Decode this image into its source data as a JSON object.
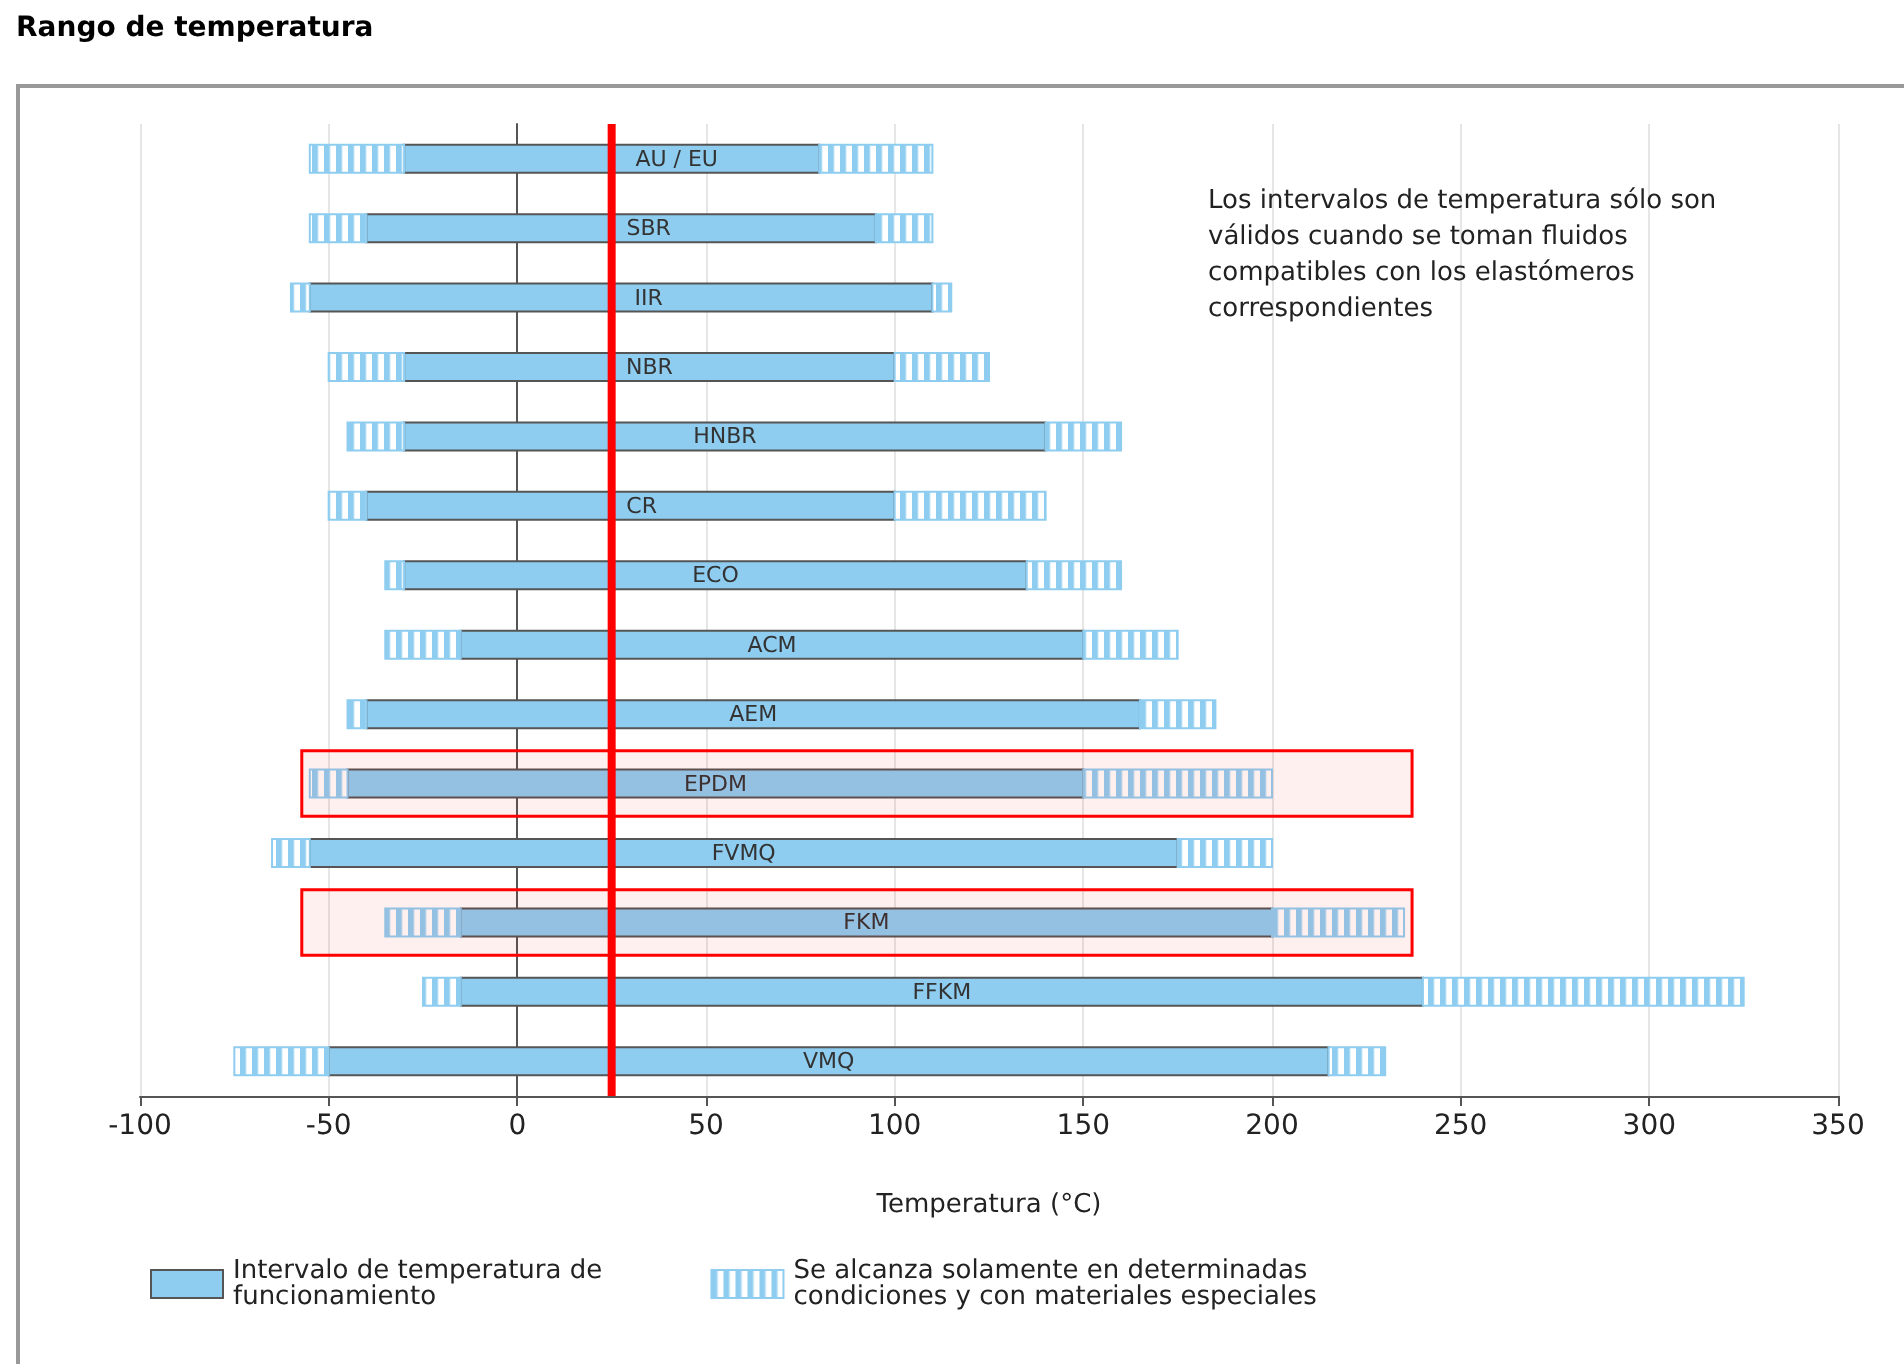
{
  "chart_data": {
    "type": "bar",
    "title": "Rango de temperatura",
    "xlabel": "Temperatura (°C)",
    "orientation": "horizontal",
    "categories": [
      "AU / EU",
      "SBR",
      "IIR",
      "NBR",
      "HNBR",
      "CR",
      "ECO",
      "ACM",
      "AEM",
      "EPDM",
      "FVMQ",
      "FKM",
      "FFKM",
      "VMQ"
    ],
    "series": [
      {
        "name": "Intervalo de temperatura de funcionamiento",
        "color": "#8ecdf0",
        "base": [
          -30,
          -40,
          -55,
          -30,
          -30,
          -40,
          -30,
          -15,
          -40,
          -45,
          -55,
          -15,
          -15,
          -50
        ],
        "values": [
          110,
          135,
          165,
          130,
          170,
          140,
          165,
          165,
          205,
          195,
          230,
          215,
          255,
          265
        ]
      },
      {
        "name": "Se alcanza solamente en determinadas condiciones y con materiales especiales",
        "color": "#8ecdf0",
        "base": [
          -55,
          -55,
          -60,
          -50,
          -45,
          -50,
          -35,
          -35,
          -45,
          -55,
          -65,
          -35,
          -25,
          -75
        ],
        "values": [
          25,
          15,
          5,
          20,
          15,
          10,
          5,
          20,
          5,
          10,
          10,
          20,
          10,
          25
        ]
      },
      {
        "color": "#8ecdf0",
        "base": [
          80,
          95,
          110,
          100,
          140,
          100,
          135,
          150,
          165,
          150,
          175,
          200,
          240,
          215
        ],
        "values": [
          30,
          15,
          5,
          25,
          20,
          40,
          25,
          25,
          20,
          50,
          25,
          35,
          85,
          15
        ]
      }
    ],
    "xlim": [
      -100,
      350
    ],
    "xticks": [
      -100,
      -50,
      0,
      50,
      100,
      150,
      200,
      250,
      300,
      350
    ],
    "grid": "x",
    "legend": "bottom",
    "ref_lines": [
      {
        "axis": "x",
        "value": 25,
        "color": "#ff0000"
      }
    ],
    "bands": [
      {
        "axis": "y",
        "from": "EPDM",
        "to": "EPDM",
        "color": "#ff0000"
      },
      {
        "axis": "y",
        "from": "FKM",
        "to": "FKM",
        "color": "#ff0000"
      }
    ],
    "annotations": [
      "Los intervalos de temperatura sólo son válidos cuando se toman fluidos compatibles con los elastómeros correspondientes"
    ]
  }
}
